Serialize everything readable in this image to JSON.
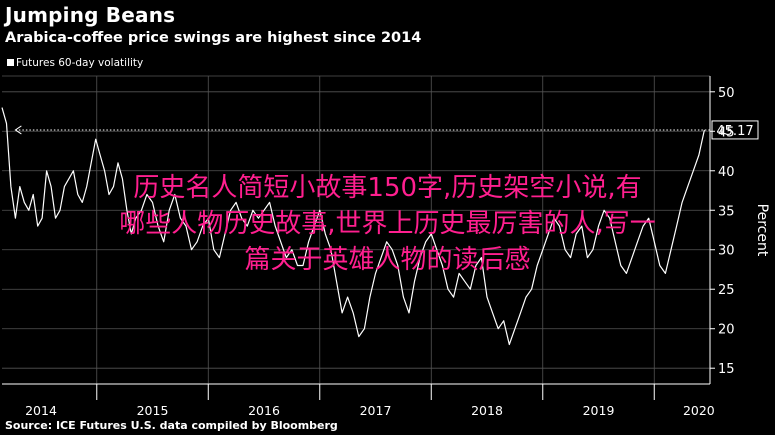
{
  "header": {
    "title": "Jumping Beans",
    "subtitle": "Arabica-coffee price swings are highest since 2014"
  },
  "footer": {
    "source": "Source: ICE Futures U.S. data compiled by Bloomberg"
  },
  "overlay": {
    "lines": [
      "历史名人简短小故事150字,历史架空小说,有",
      "哪些人物历史故事,世界上历史最厉害的人,写一",
      "篇关于英雄人物的读后感"
    ]
  },
  "colors": {
    "background": "#000000",
    "line": "#ffffff",
    "grid": "#555555",
    "overlay_text": "#ff1f8f"
  },
  "chart_data": {
    "type": "line",
    "title": "Jumping Beans",
    "subtitle": "Arabica-coffee price swings are highest since 2014",
    "legend": [
      "Futures 60-day volatility"
    ],
    "legend_position": "top-left",
    "ylabel": "Percent",
    "y_axis_side": "right",
    "ylim": [
      13,
      52
    ],
    "yticks": [
      15,
      20,
      25,
      30,
      35,
      40,
      45,
      50
    ],
    "xlim": [
      2013.8,
      2020.15
    ],
    "xticks": [
      {
        "value": 2014.15,
        "label": "2014"
      },
      {
        "value": 2015.15,
        "label": "2015"
      },
      {
        "value": 2016.15,
        "label": "2016"
      },
      {
        "value": 2017.15,
        "label": "2017"
      },
      {
        "value": 2018.15,
        "label": "2018"
      },
      {
        "value": 2019.15,
        "label": "2019"
      },
      {
        "value": 2020.05,
        "label": "2020"
      }
    ],
    "grid": true,
    "reference_line": {
      "value": 45.17,
      "style": "dotted",
      "label": "45.17"
    },
    "series": [
      {
        "name": "Futures 60-day volatility",
        "x": [
          2013.8,
          2013.84,
          2013.88,
          2013.92,
          2013.96,
          2014.0,
          2014.04,
          2014.08,
          2014.12,
          2014.16,
          2014.2,
          2014.24,
          2014.28,
          2014.32,
          2014.36,
          2014.4,
          2014.44,
          2014.48,
          2014.52,
          2014.56,
          2014.6,
          2014.64,
          2014.68,
          2014.72,
          2014.76,
          2014.8,
          2014.84,
          2014.88,
          2014.92,
          2014.96,
          2015.0,
          2015.05,
          2015.1,
          2015.15,
          2015.2,
          2015.25,
          2015.3,
          2015.35,
          2015.4,
          2015.45,
          2015.5,
          2015.55,
          2015.6,
          2015.65,
          2015.7,
          2015.75,
          2015.8,
          2015.85,
          2015.9,
          2015.95,
          2016.0,
          2016.05,
          2016.1,
          2016.15,
          2016.2,
          2016.25,
          2016.3,
          2016.35,
          2016.4,
          2016.45,
          2016.5,
          2016.55,
          2016.6,
          2016.65,
          2016.7,
          2016.75,
          2016.8,
          2016.85,
          2016.9,
          2016.95,
          2017.0,
          2017.05,
          2017.1,
          2017.15,
          2017.2,
          2017.25,
          2017.3,
          2017.35,
          2017.4,
          2017.45,
          2017.5,
          2017.55,
          2017.6,
          2017.65,
          2017.7,
          2017.75,
          2017.8,
          2017.85,
          2017.9,
          2017.95,
          2018.0,
          2018.05,
          2018.1,
          2018.15,
          2018.2,
          2018.25,
          2018.3,
          2018.35,
          2018.4,
          2018.45,
          2018.5,
          2018.55,
          2018.6,
          2018.65,
          2018.7,
          2018.75,
          2018.8,
          2018.85,
          2018.9,
          2018.95,
          2019.0,
          2019.05,
          2019.1,
          2019.15,
          2019.2,
          2019.25,
          2019.3,
          2019.35,
          2019.4,
          2019.45,
          2019.5,
          2019.55,
          2019.6,
          2019.65,
          2019.7,
          2019.75,
          2019.8,
          2019.85,
          2019.9,
          2019.95,
          2020.0,
          2020.05,
          2020.1
        ],
        "y": [
          48,
          46,
          38,
          34,
          38,
          36,
          35,
          37,
          33,
          34,
          40,
          38,
          34,
          35,
          38,
          39,
          40,
          37,
          36,
          38,
          41,
          44,
          42,
          40,
          37,
          38,
          41,
          39,
          35,
          32,
          34,
          35,
          37,
          36,
          33,
          31,
          35,
          37,
          34,
          33,
          30,
          31,
          33,
          34,
          30,
          29,
          32,
          35,
          36,
          34,
          33,
          35,
          34,
          35,
          36,
          33,
          31,
          29,
          30,
          28,
          28,
          31,
          33,
          35,
          32,
          30,
          26,
          22,
          24,
          22,
          19,
          20,
          24,
          27,
          29,
          31,
          30,
          28,
          24,
          22,
          26,
          29,
          31,
          32,
          30,
          28,
          25,
          24,
          27,
          26,
          25,
          28,
          29,
          24,
          22,
          20,
          21,
          18,
          20,
          22,
          24,
          25,
          28,
          30,
          32,
          34,
          33,
          30,
          29,
          32,
          33,
          29,
          30,
          33,
          35,
          34,
          31,
          28,
          27,
          29,
          31,
          33,
          34,
          31,
          28,
          27,
          30,
          33,
          36,
          38,
          40,
          42,
          45.17
        ]
      }
    ]
  }
}
